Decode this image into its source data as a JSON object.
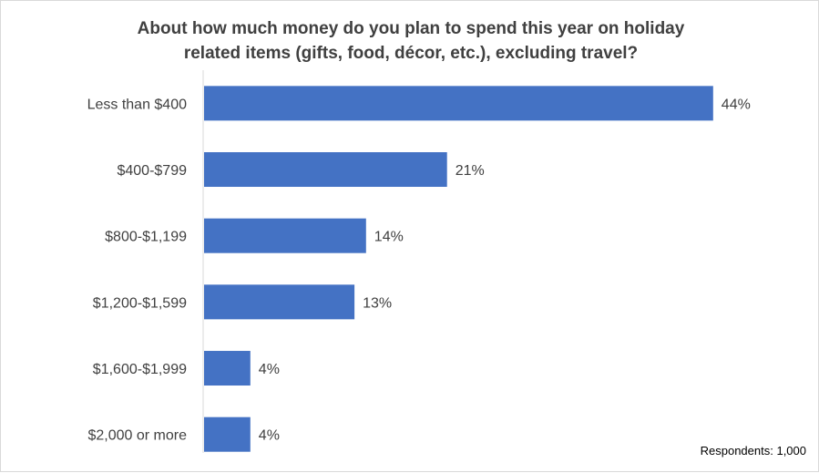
{
  "chart_data": {
    "type": "bar",
    "orientation": "horizontal",
    "title_lines": [
      "About how much money do you plan to spend this year on holiday",
      "related items (gifts, food, décor, etc.), excluding travel?"
    ],
    "categories": [
      "Less than $400",
      "$400-$799",
      "$800-$1,199",
      "$1,200-$1,599",
      "$1,600-$1,999",
      "$2,000 or more"
    ],
    "values": [
      44,
      21,
      14,
      13,
      4,
      4
    ],
    "value_labels": [
      "44%",
      "21%",
      "14%",
      "13%",
      "4%",
      "4%"
    ],
    "unit": "%",
    "xlim": [
      0,
      50
    ],
    "bar_color": "#4472c4",
    "grid": false,
    "legend": "none",
    "note": "Respondents: 1,000"
  }
}
